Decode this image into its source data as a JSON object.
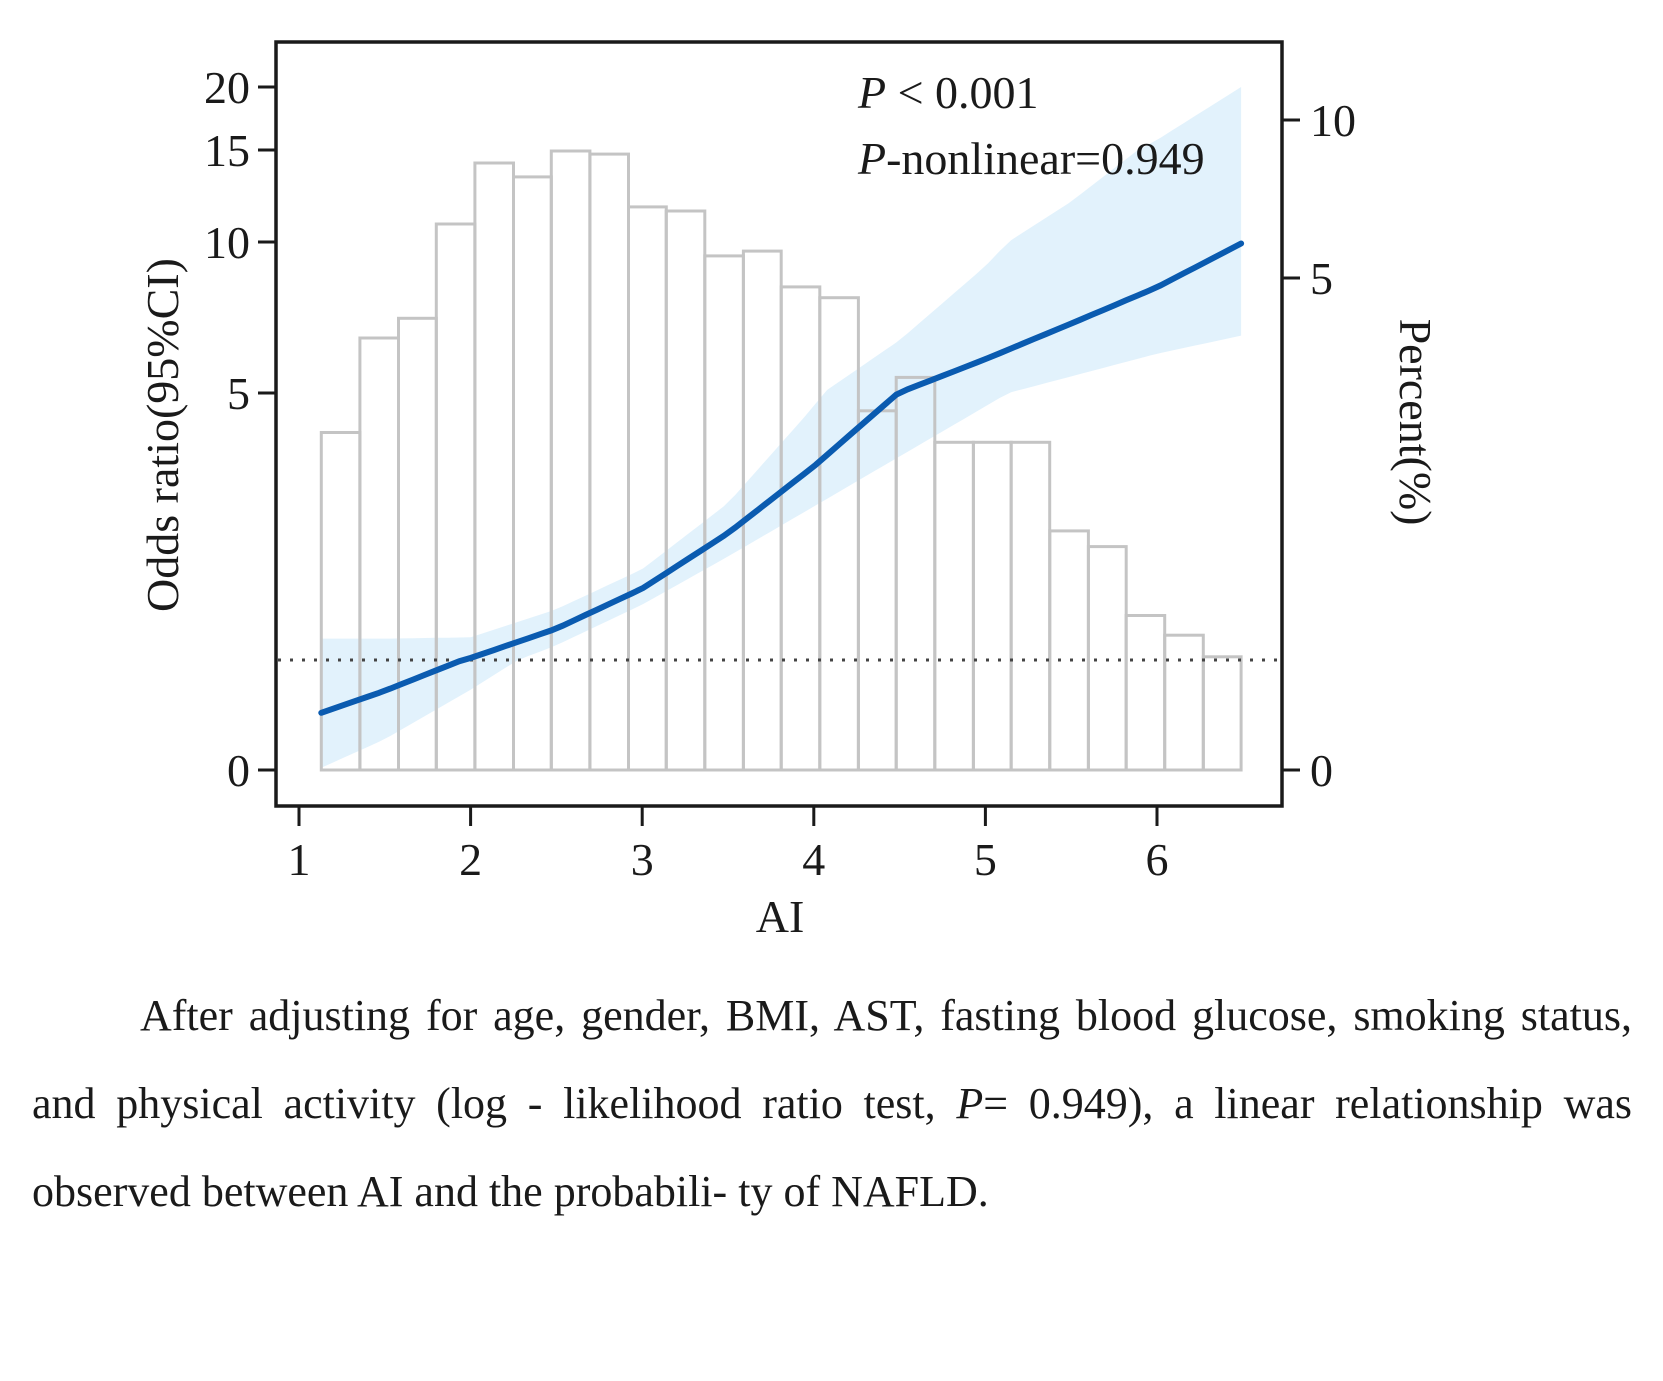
{
  "chart_data": {
    "type": "line",
    "title": "",
    "annotations": [
      "P < 0.001",
      "P-nonlinear=0.949"
    ],
    "xlabel": "AI",
    "ylabel_left": "Odds ratio(95%CI)",
    "ylabel_right": "Percent(%)",
    "xlim": [
      0.9,
      6.75
    ],
    "x_ticks": [
      1,
      2,
      3,
      4,
      5,
      6
    ],
    "y_left_ticks": [
      0,
      5,
      10,
      15,
      20
    ],
    "y_right_ticks": [
      0,
      5,
      10
    ],
    "reference_line": {
      "label": "OR = 1",
      "style": "dotted",
      "value": 1
    },
    "histogram": {
      "name": "Percent",
      "axis": "right",
      "bin_edges": [
        1.13,
        1.355,
        1.58,
        1.8,
        2.025,
        2.25,
        2.47,
        2.695,
        2.92,
        3.14,
        3.365,
        3.59,
        3.81,
        4.035,
        4.26,
        4.48,
        4.705,
        4.93,
        5.15,
        5.375,
        5.6,
        5.82,
        6.045,
        6.27,
        6.49
      ],
      "values": [
        3.43,
        4.39,
        4.59,
        6.71,
        8.64,
        8.2,
        9.02,
        8.92,
        7.25,
        7.12,
        5.7,
        5.85,
        4.91,
        4.8,
        3.65,
        3.99,
        3.33,
        3.33,
        3.33,
        2.43,
        2.27,
        1.57,
        1.37,
        1.15
      ]
    },
    "series": [
      {
        "name": "Odds ratio",
        "axis": "left",
        "color": "#0a5bb0",
        "x": [
          1.13,
          1.5,
          2.0,
          2.5,
          3.0,
          3.5,
          4.0,
          4.5,
          5.0,
          5.5,
          6.0,
          6.49
        ],
        "y": [
          0.52,
          0.72,
          1.03,
          1.47,
          2.07,
          2.9,
          3.9,
          5.02,
          6.12,
          7.3,
          8.5,
          9.95
        ],
        "ci_lower": [
          0.02,
          0.28,
          0.73,
          1.22,
          1.83,
          2.55,
          3.3,
          4.05,
          4.8,
          5.55,
          6.3,
          6.9
        ],
        "ci_upper": [
          1.32,
          1.32,
          1.34,
          1.76,
          2.36,
          3.35,
          4.8,
          6.75,
          9.2,
          12.2,
          15.8,
          20.0
        ]
      }
    ],
    "ci_color": "#bfe3f8",
    "grid": false,
    "legend": "none"
  },
  "caption": {
    "line1": "After adjusting for age, gender, BMI, AST, fasting blood glucose,",
    "line2_a": "smoking status, and physical activity (log - likelihood ratio test, ",
    "line2_p": "P",
    "line2_b": "=",
    "line3": "0.949), a linear relationship was observed between AI and the probabili-",
    "line4": "ty of NAFLD."
  }
}
